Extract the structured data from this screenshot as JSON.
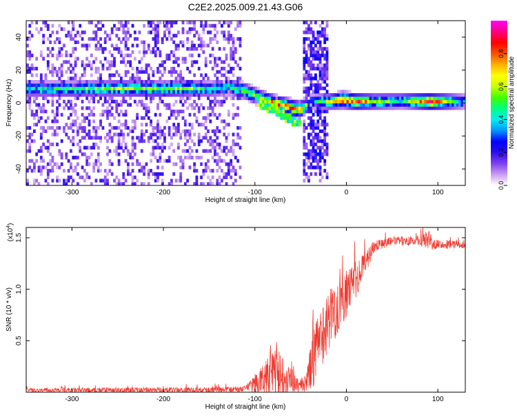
{
  "title": "C2E2.2025.009.21.43.G06",
  "chart_data": [
    {
      "type": "heatmap",
      "xlabel": "Height of straight line (km)",
      "ylabel": "Frequency (Hz)",
      "xlim": [
        -350,
        130
      ],
      "ylim": [
        -50,
        50
      ],
      "xticks": [
        -300,
        -200,
        -100,
        0,
        100
      ],
      "yticks": [
        -40,
        -20,
        0,
        20,
        40
      ],
      "colorbar": {
        "label": "Normalized spectral amplitude",
        "range": [
          0.0,
          1.0
        ],
        "ticks": [
          0.0,
          0.2,
          0.4,
          0.6,
          0.8
        ],
        "colormap": [
          "#ffffff",
          "#ca9cf0",
          "#7f3ff0",
          "#2a10f0",
          "#0000ff",
          "#0095ff",
          "#00f0f0",
          "#00ff80",
          "#40ff00",
          "#c8ff00",
          "#ffff00",
          "#ffb000",
          "#ff5000",
          "#ff0000",
          "#ff0080",
          "#ff00ff"
        ]
      },
      "ridge": [
        {
          "x": -350,
          "y": 7.5,
          "a": 0.45
        },
        {
          "x": -300,
          "y": 7.5,
          "a": 0.5
        },
        {
          "x": -250,
          "y": 8,
          "a": 0.6
        },
        {
          "x": -200,
          "y": 7.5,
          "a": 0.6
        },
        {
          "x": -170,
          "y": 8,
          "a": 0.55
        },
        {
          "x": -150,
          "y": 7.5,
          "a": 0.45
        },
        {
          "x": -130,
          "y": 9,
          "a": 0.5
        },
        {
          "x": -110,
          "y": 6,
          "a": 0.6
        },
        {
          "x": -95,
          "y": 2,
          "a": 0.7
        },
        {
          "x": -80,
          "y": -1,
          "a": 0.8
        },
        {
          "x": -65,
          "y": -3,
          "a": 0.85
        },
        {
          "x": -52,
          "y": -5,
          "a": 0.9
        },
        {
          "x": -40,
          "y": 0,
          "a": 0.3
        },
        {
          "x": -20,
          "y": 0,
          "a": 0.6
        },
        {
          "x": -5,
          "y": 1,
          "a": 0.9
        },
        {
          "x": 10,
          "y": 0,
          "a": 0.85
        },
        {
          "x": 30,
          "y": 0,
          "a": 0.6
        },
        {
          "x": 60,
          "y": 0.5,
          "a": 0.5
        },
        {
          "x": 90,
          "y": 0,
          "a": 0.95
        },
        {
          "x": 130,
          "y": 0,
          "a": 0.3
        }
      ],
      "secondary_branch": [
        {
          "x": -100,
          "y": 0,
          "a": 0.5
        },
        {
          "x": -80,
          "y": -5,
          "a": 0.55
        },
        {
          "x": -62,
          "y": -11,
          "a": 0.6
        },
        {
          "x": -55,
          "y": -13,
          "a": 0.5
        }
      ]
    },
    {
      "type": "line",
      "xlabel": "Height of straight line (km)",
      "ylabel": "SNR (10 * v/v)",
      "yscale_label": "(x10",
      "yscale_exp": "4",
      "yscale_close": ")",
      "xlim": [
        -350,
        130
      ],
      "ylim": [
        0,
        1.6
      ],
      "xticks": [
        -300,
        -200,
        -100,
        0,
        100
      ],
      "yticks": [
        "0.5",
        "1.0",
        "1.5"
      ],
      "ytick_values": [
        0.5,
        1.0,
        1.5
      ],
      "color": "#ef3a30",
      "envelope": [
        {
          "x": -350,
          "base": 0.02,
          "noise": 0.02
        },
        {
          "x": -150,
          "base": 0.02,
          "noise": 0.03
        },
        {
          "x": -110,
          "base": 0.03,
          "noise": 0.03
        },
        {
          "x": -95,
          "base": 0.1,
          "noise": 0.12
        },
        {
          "x": -80,
          "base": 0.2,
          "noise": 0.25
        },
        {
          "x": -65,
          "base": 0.15,
          "noise": 0.2
        },
        {
          "x": -55,
          "base": 0.07,
          "noise": 0.07
        },
        {
          "x": -45,
          "base": 0.08,
          "noise": 0.08
        },
        {
          "x": -35,
          "base": 0.35,
          "noise": 0.3
        },
        {
          "x": -20,
          "base": 0.7,
          "noise": 0.3
        },
        {
          "x": 0,
          "base": 0.95,
          "noise": 0.25
        },
        {
          "x": 15,
          "base": 1.15,
          "noise": 0.15
        },
        {
          "x": 30,
          "base": 1.42,
          "noise": 0.06
        },
        {
          "x": 50,
          "base": 1.47,
          "noise": 0.04
        },
        {
          "x": 80,
          "base": 1.47,
          "noise": 0.05
        },
        {
          "x": 90,
          "base": 1.48,
          "noise": 0.1
        },
        {
          "x": 100,
          "base": 1.44,
          "noise": 0.05
        },
        {
          "x": 130,
          "base": 1.43,
          "noise": 0.03
        }
      ]
    }
  ]
}
